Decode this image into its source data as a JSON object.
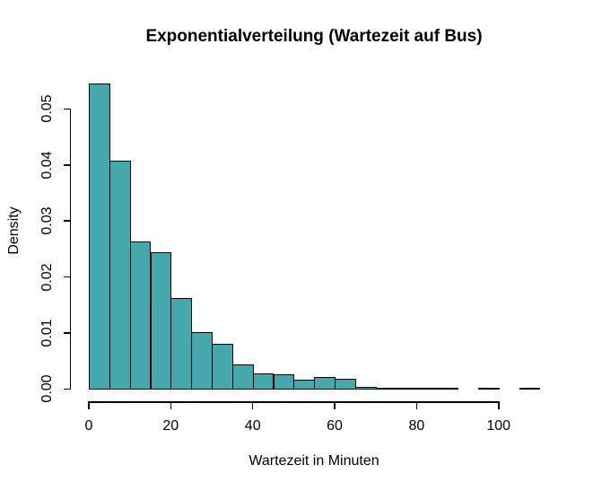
{
  "chart_data": {
    "type": "bar",
    "subtype": "histogram",
    "title": "Exponentialverteilung (Wartezeit auf Bus)",
    "xlabel": "Wartezeit in Minuten",
    "ylabel": "Density",
    "bin_start": 0,
    "bin_width": 5,
    "bin_edges": [
      0,
      5,
      10,
      15,
      20,
      25,
      30,
      35,
      40,
      45,
      50,
      55,
      60,
      65,
      70,
      75,
      80,
      85,
      90,
      95,
      100,
      105,
      110
    ],
    "densities": [
      0.0546,
      0.0408,
      0.0264,
      0.0244,
      0.0162,
      0.0102,
      0.008,
      0.0044,
      0.0028,
      0.0026,
      0.0016,
      0.0022,
      0.0018,
      0.0004,
      0.0002,
      0.0002,
      0.0002,
      0.0002,
      0,
      0.0002,
      0,
      0.0002
    ],
    "x_ticks": [
      0,
      20,
      40,
      60,
      80,
      100
    ],
    "x_tick_labels": [
      "0",
      "20",
      "40",
      "60",
      "80",
      "100"
    ],
    "y_ticks": [
      0,
      0.01,
      0.02,
      0.03,
      0.04,
      0.05
    ],
    "y_tick_labels": [
      "0.00",
      "0.01",
      "0.02",
      "0.03",
      "0.04",
      "0.05"
    ],
    "xlim": [
      0,
      110
    ],
    "ylim": [
      0,
      0.055
    ],
    "grid": false,
    "legend_position": "none",
    "colors": {
      "bar_fill": "#46A8AD",
      "bar_border": "#000000",
      "axis": "#000000",
      "text": "#000000",
      "background": "#FFFFFF"
    }
  }
}
